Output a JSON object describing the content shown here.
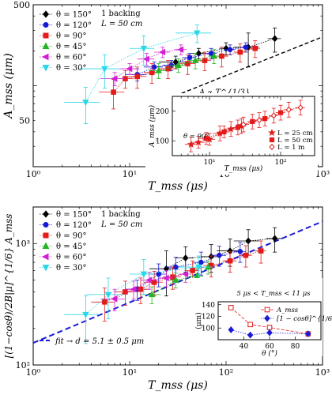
{
  "chart_data": [
    {
      "type": "scatter",
      "panel": "top",
      "xlabel": "T_mss (μs)",
      "ylabel": "A_mss (μm)",
      "x_scale": "log",
      "y_scale": "log",
      "xlim": [
        1,
        1000
      ],
      "ylim": [
        20,
        500
      ],
      "x_ticks": [
        {
          "v": 1,
          "label": "10⁰"
        },
        {
          "v": 10,
          "label": "10¹"
        },
        {
          "v": 100,
          "label": "10²"
        },
        {
          "v": 1000,
          "label": "10³"
        }
      ],
      "y_ticks": [
        {
          "v": 50,
          "label": "50"
        },
        {
          "v": 500,
          "label": "500"
        }
      ],
      "legend_header": [
        "1 backing",
        "L = 50 cm"
      ],
      "series": [
        {
          "name": "θ = 150°",
          "color": "#000000",
          "marker": "diamond",
          "points": [
            [
              30,
              160,
              10,
              20
            ],
            [
              52,
              190,
              10,
              20
            ],
            [
              100,
              210,
              15,
              25
            ],
            [
              170,
              215,
              50,
              70
            ],
            [
              320,
              255,
              50,
              60
            ]
          ]
        },
        {
          "name": "θ = 120°",
          "color": "#1a1ad6",
          "marker": "circle",
          "points": [
            [
              12,
              125,
              3,
              15
            ],
            [
              18,
              145,
              4,
              15
            ],
            [
              27,
              150,
              5,
              15
            ],
            [
              42,
              175,
              7,
              15
            ],
            [
              70,
              190,
              10,
              20
            ],
            [
              110,
              205,
              15,
              20
            ],
            [
              160,
              215,
              20,
              20
            ]
          ]
        },
        {
          "name": "θ = 90°",
          "color": "#e21b1b",
          "marker": "square",
          "points": [
            [
              6.8,
              88,
              2,
              25
            ],
            [
              9,
              115,
              2,
              20
            ],
            [
              12,
              120,
              3,
              25
            ],
            [
              17,
              130,
              3,
              25
            ],
            [
              25,
              140,
              5,
              25
            ],
            [
              40,
              155,
              8,
              30
            ],
            [
              60,
              165,
              10,
              30
            ],
            [
              90,
              180,
              15,
              35
            ],
            [
              140,
              195,
              20,
              35
            ],
            [
              200,
              210,
              25,
              35
            ]
          ]
        },
        {
          "name": "θ = 45°",
          "color": "#22b522",
          "marker": "triangle-up",
          "points": [
            [
              20,
              135,
              4,
              20
            ],
            [
              32,
              150,
              6,
              20
            ],
            [
              48,
              165,
              8,
              25
            ],
            [
              75,
              180,
              10,
              25
            ]
          ]
        },
        {
          "name": "θ = 60°",
          "color": "#d21fd2",
          "marker": "triangle-left",
          "points": [
            [
              7,
              115,
              2,
              15
            ],
            [
              10,
              140,
              2,
              15
            ],
            [
              15,
              170,
              3,
              20
            ],
            [
              22,
              195,
              4,
              20
            ],
            [
              34,
              205,
              5,
              20
            ]
          ]
        },
        {
          "name": "θ = 30°",
          "color": "#2ad7e8",
          "marker": "triangle-down",
          "points": [
            [
              3.5,
              72,
              1.4,
              25
            ],
            [
              5.5,
              140,
              2.5,
              45
            ],
            [
              14,
              210,
              4,
              60
            ],
            [
              50,
              285,
              20,
              50
            ]
          ]
        }
      ],
      "reference_line": {
        "label": "A ∝ T^{1/3}",
        "x_range": [
          30,
          1000
        ],
        "start_y": 82,
        "exponent": 0.333333
      },
      "inset": {
        "type": "scatter",
        "xlabel": "T_mss (μs)",
        "ylabel": "A_mss (μm)",
        "x_scale": "log",
        "xlim": [
          3,
          300
        ],
        "ylim": [
          50,
          250
        ],
        "x_ticks": [
          {
            "v": 10,
            "label": "10¹"
          },
          {
            "v": 100,
            "label": "10²"
          }
        ],
        "y_ticks": [
          {
            "v": 100,
            "label": "100"
          },
          {
            "v": 200,
            "label": "200"
          }
        ],
        "annotation": "θ = 90°",
        "series": [
          {
            "name": "L = 25 cm",
            "color": "#e21b1b",
            "marker": "star",
            "points": [
              [
                5.5,
                88,
                1,
                25
              ],
              [
                7,
                95,
                1.5,
                20
              ],
              [
                10,
                105,
                2,
                20
              ],
              [
                14,
                125,
                3,
                25
              ],
              [
                20,
                140,
                4,
                25
              ],
              [
                28,
                150,
                5,
                25
              ]
            ]
          },
          {
            "name": "L = 50 cm",
            "color": "#e21b1b",
            "marker": "square",
            "points": [
              [
                9,
                108,
                2,
                20
              ],
              [
                16,
                130,
                3,
                20
              ],
              [
                25,
                145,
                4,
                25
              ],
              [
                40,
                165,
                6,
                25
              ],
              [
                60,
                175,
                10,
                25
              ],
              [
                100,
                195,
                15,
                25
              ]
            ]
          },
          {
            "name": "L = 1 m",
            "color": "#e21b1b",
            "marker": "diamond-open",
            "points": [
              [
                30,
                155,
                6,
                25
              ],
              [
                50,
                170,
                8,
                25
              ],
              [
                80,
                185,
                12,
                25
              ],
              [
                130,
                205,
                20,
                25
              ],
              [
                190,
                212,
                30,
                25
              ]
            ]
          }
        ]
      }
    },
    {
      "type": "scatter",
      "panel": "bottom",
      "xlabel": "T_mss (μs)",
      "ylabel": "[(1−cosθ)/2B|μ]^{1/6} A_mss",
      "x_scale": "log",
      "y_scale": "log",
      "xlim": [
        1,
        1000
      ],
      "ylim": [
        100,
        2000
      ],
      "x_ticks": [
        {
          "v": 1,
          "label": "10⁰"
        },
        {
          "v": 10,
          "label": "10¹"
        },
        {
          "v": 100,
          "label": "10²"
        },
        {
          "v": 1000,
          "label": "10³"
        }
      ],
      "y_ticks": [
        {
          "v": 100,
          "label": "10²"
        },
        {
          "v": 1000,
          "label": "10³"
        }
      ],
      "legend_header": [
        "1 backing",
        "L = 50 cm"
      ],
      "series": [
        {
          "name": "θ = 150°",
          "color": "#000000",
          "marker": "diamond",
          "points": [
            [
              24,
              620,
              8,
              250
            ],
            [
              38,
              760,
              8,
              180
            ],
            [
              70,
              780,
              15,
              200
            ],
            [
              110,
              870,
              30,
              220
            ],
            [
              170,
              1050,
              50,
              250
            ],
            [
              320,
              1100,
              60,
              250
            ]
          ]
        },
        {
          "name": "θ = 120°",
          "color": "#1a1ad6",
          "marker": "circle",
          "points": [
            [
              12,
              420,
              3,
              80
            ],
            [
              20,
              560,
              4,
              120
            ],
            [
              30,
              640,
              6,
              130
            ],
            [
              55,
              700,
              10,
              150
            ],
            [
              85,
              800,
              15,
              150
            ],
            [
              140,
              860,
              20,
              160
            ]
          ]
        },
        {
          "name": "θ = 90°",
          "color": "#e21b1b",
          "marker": "square",
          "points": [
            [
              5.5,
              330,
              1.5,
              100
            ],
            [
              9,
              400,
              2,
              90
            ],
            [
              13,
              420,
              3,
              100
            ],
            [
              18,
              480,
              4,
              110
            ],
            [
              28,
              530,
              6,
              110
            ],
            [
              45,
              600,
              8,
              120
            ],
            [
              70,
              660,
              12,
              130
            ],
            [
              110,
              720,
              18,
              140
            ],
            [
              160,
              800,
              25,
              160
            ],
            [
              230,
              870,
              30,
              180
            ]
          ]
        },
        {
          "name": "θ = 45°",
          "color": "#22b522",
          "marker": "triangle-up",
          "points": [
            [
              17,
              380,
              4,
              60
            ],
            [
              30,
              500,
              6,
              70
            ],
            [
              50,
              540,
              8,
              80
            ],
            [
              65,
              640,
              10,
              80
            ]
          ]
        },
        {
          "name": "θ = 60°",
          "color": "#d21fd2",
          "marker": "triangle-left",
          "points": [
            [
              7,
              350,
              2,
              70
            ],
            [
              11,
              420,
              2,
              70
            ],
            [
              16,
              500,
              3,
              80
            ],
            [
              24,
              520,
              4,
              80
            ],
            [
              38,
              560,
              6,
              80
            ]
          ]
        },
        {
          "name": "θ = 30°",
          "color": "#2ad7e8",
          "marker": "triangle-down",
          "points": [
            [
              3.5,
              260,
              1.4,
              110
            ],
            [
              6,
              380,
              2.5,
              140
            ],
            [
              14,
              560,
              4,
              180
            ],
            [
              52,
              640,
              20,
              150
            ]
          ]
        }
      ],
      "fit_line": {
        "label": "fit → d = 5.1 ± 0.5 μm",
        "y_at_x1": 152,
        "exponent": 0.333333
      },
      "inset": {
        "type": "line",
        "title": "5 μs < T_mss < 11 μs",
        "xlabel": "θ (°)",
        "ylabel": "(μm)",
        "xlim": [
          20,
          100
        ],
        "ylim": [
          80,
          145
        ],
        "x_ticks": [
          {
            "v": 40,
            "label": "40"
          },
          {
            "v": 60,
            "label": "60"
          },
          {
            "v": 80,
            "label": "80"
          }
        ],
        "y_ticks": [
          {
            "v": 100,
            "label": "100"
          },
          {
            "v": 120,
            "label": "120"
          },
          {
            "v": 140,
            "label": "140"
          }
        ],
        "series": [
          {
            "name": "A_mss",
            "color": "#e21b1b",
            "marker": "square-open",
            "dash": "4,2",
            "points": [
              [
                30,
                135
              ],
              [
                45,
                106
              ],
              [
                60,
                101
              ],
              [
                90,
                90
              ]
            ]
          },
          {
            "name": "[1 − cosθ]^{1/6} A_mss",
            "color": "#1a1ad6",
            "marker": "diamond",
            "dash": "1.5,1.5",
            "points": [
              [
                30,
                97
              ],
              [
                45,
                88
              ],
              [
                60,
                92
              ],
              [
                90,
                90
              ]
            ]
          }
        ]
      }
    }
  ]
}
